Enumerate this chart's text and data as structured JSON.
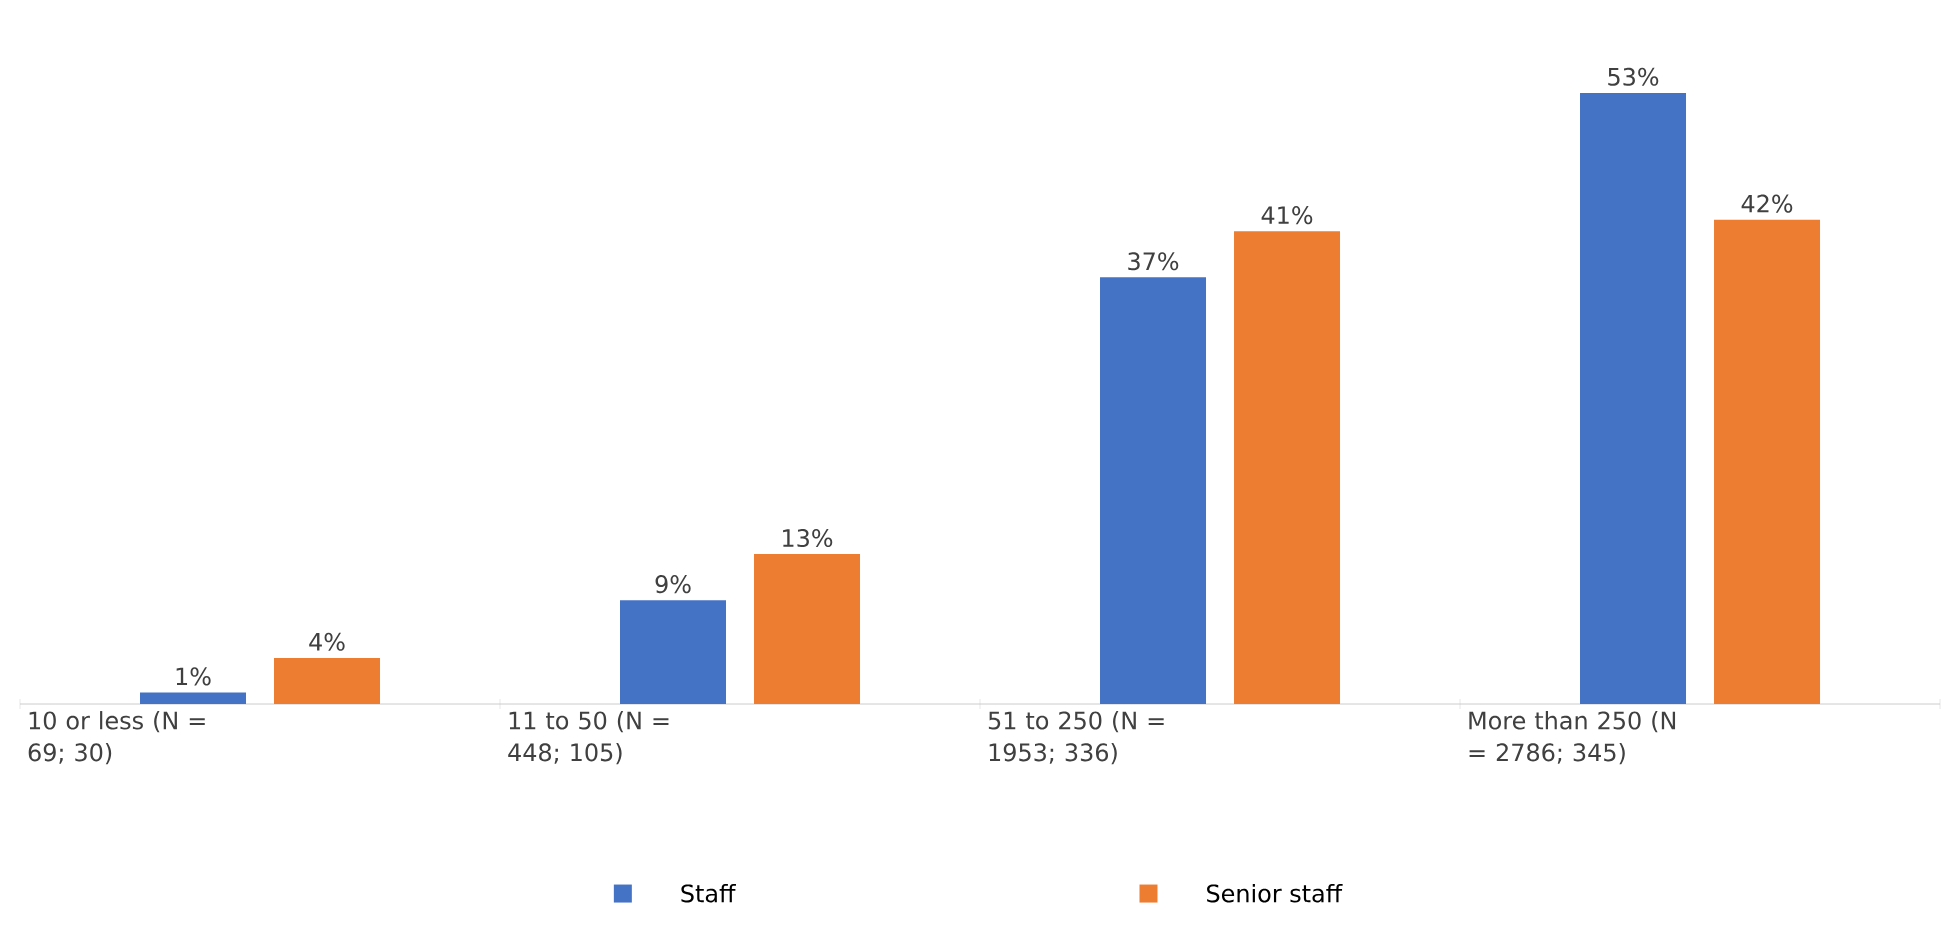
{
  "chart_data": {
    "type": "bar",
    "categories": [
      "10 or less (N = 69; 30)",
      "11 to 50 (N = 448; 105)",
      "51 to 250 (N = 1953; 336)",
      "More than 250 (N = 2786; 345)"
    ],
    "series": [
      {
        "name": "Staff",
        "color": "#4472c4",
        "values": [
          1,
          9,
          37,
          53
        ],
        "value_labels": [
          "1%",
          "9%",
          "37%",
          "53%"
        ]
      },
      {
        "name": "Senior staff",
        "color": "#ed7d31",
        "values": [
          4,
          13,
          41,
          42
        ],
        "value_labels": [
          "4%",
          "13%",
          "41%",
          "42%"
        ]
      }
    ],
    "legend": "bottom"
  }
}
